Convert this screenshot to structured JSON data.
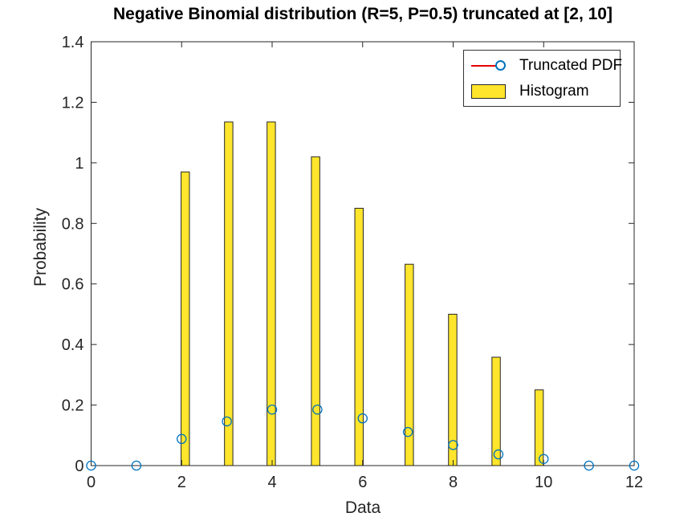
{
  "figure": {
    "background": "#ffffff",
    "title": "Negative Binomial distribution (R=5, P=0.5) truncated at [2, 10]"
  },
  "chart_data": {
    "type": "bar",
    "title": "Negative Binomial distribution (R=5, P=0.5) truncated at [2, 10]",
    "xlabel": "Data",
    "ylabel": "Probability",
    "xlim": [
      0,
      12
    ],
    "ylim": [
      0,
      1.4
    ],
    "xticks": [
      0,
      2,
      4,
      6,
      8,
      10,
      12
    ],
    "ytick_labels": [
      "0",
      "0.2",
      "0.4",
      "0.6",
      "0.8",
      "1",
      "1.2",
      "1.4"
    ],
    "yticks": [
      0,
      0.2,
      0.4,
      0.6,
      0.8,
      1,
      1.2,
      1.4
    ],
    "grid": false,
    "box": true,
    "tick_dir": "in",
    "axis_color": "#262626",
    "series": [
      {
        "name": "Truncated PDF",
        "type": "scatter",
        "marker": "open-circle",
        "marker_color": "#0072bd",
        "line_color": "#e60000",
        "line_visible_in_plot": false,
        "x": [
          0,
          1,
          2,
          3,
          4,
          5,
          6,
          7,
          8,
          9,
          10,
          11,
          12
        ],
        "y": [
          0,
          0,
          0.088,
          0.146,
          0.185,
          0.185,
          0.156,
          0.111,
          0.068,
          0.037,
          0.022,
          0,
          0
        ]
      },
      {
        "name": "Histogram",
        "type": "bar",
        "fill": "#ffe52b",
        "edge": "#262626",
        "bar_width": 0.185,
        "x": [
          2.08,
          3.04,
          3.98,
          4.96,
          5.92,
          7.03,
          7.99,
          8.95,
          9.9
        ],
        "y": [
          0.97,
          1.135,
          1.135,
          1.02,
          0.85,
          0.665,
          0.5,
          0.358,
          0.25
        ]
      }
    ],
    "legend": {
      "position": "top-right",
      "entries": [
        {
          "label": "Truncated PDF",
          "swatch": "red-line-with-circle"
        },
        {
          "label": "Histogram",
          "swatch": "yellow-patch"
        }
      ]
    }
  }
}
